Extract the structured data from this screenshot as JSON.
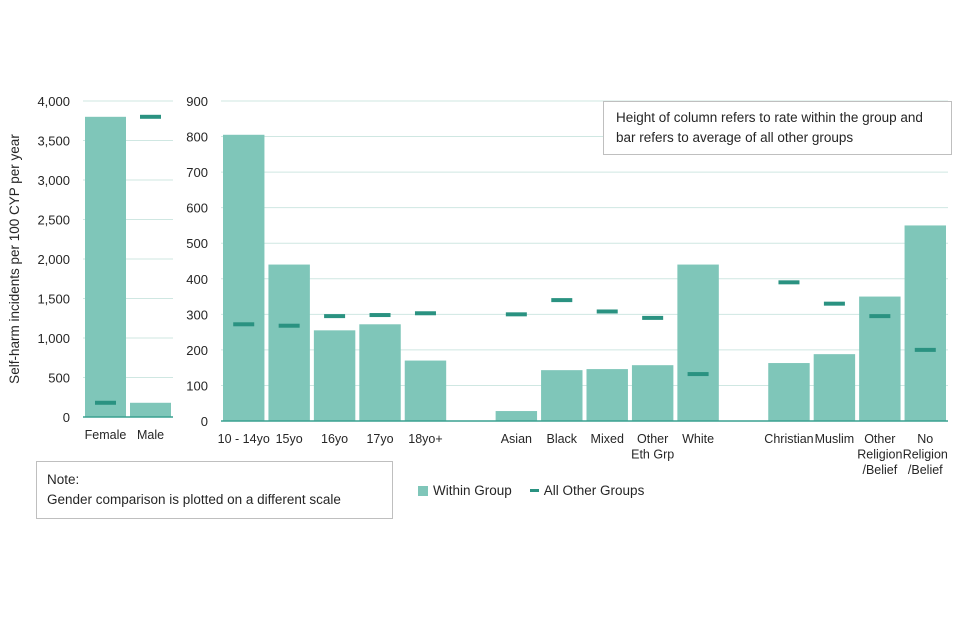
{
  "chart_data": {
    "type": "bar",
    "ylabel": "Self-harm incidents per 100 CYP per year",
    "colors": {
      "within_group": "#7fc6b9",
      "all_other_groups": "#2a9281",
      "axis": "#3aa090",
      "grid": "#cfe7e2"
    },
    "legend": {
      "position": "bottom",
      "entries": [
        {
          "name": "Within Group",
          "marker": "square"
        },
        {
          "name": "All Other Groups",
          "marker": "dash"
        }
      ]
    },
    "annotation": "Height of column refers to rate within the group and bar refers to average of all other groups",
    "note": {
      "title": "Note:",
      "text": "Gender comparison is plotted on a different scale"
    },
    "panels": [
      {
        "name": "gender",
        "ylim": [
          0,
          4000
        ],
        "yticks": [
          0,
          500,
          1000,
          1500,
          2000,
          2500,
          3000,
          3500,
          4000
        ],
        "ytick_labels": [
          "0",
          "500",
          "1,000",
          "1,500",
          "2,000",
          "2,500",
          "3,000",
          "3,500",
          "4,000"
        ],
        "categories": [
          {
            "label": [
              "Female"
            ],
            "within_group": 3800,
            "all_other_groups": 180
          },
          {
            "label": [
              "Male"
            ],
            "within_group": 180,
            "all_other_groups": 3800
          }
        ]
      },
      {
        "name": "groups",
        "ylim": [
          0,
          900
        ],
        "yticks": [
          0,
          100,
          200,
          300,
          400,
          500,
          600,
          700,
          800,
          900
        ],
        "ytick_labels": [
          "0",
          "100",
          "200",
          "300",
          "400",
          "500",
          "600",
          "700",
          "800",
          "900"
        ],
        "categories": [
          {
            "label": [
              "10 - 14yo"
            ],
            "within_group": 805,
            "all_other_groups": 272
          },
          {
            "label": [
              "15yo"
            ],
            "within_group": 440,
            "all_other_groups": 268
          },
          {
            "label": [
              "16yo"
            ],
            "within_group": 255,
            "all_other_groups": 295
          },
          {
            "label": [
              "17yo"
            ],
            "within_group": 272,
            "all_other_groups": 298
          },
          {
            "label": [
              "18yo+"
            ],
            "within_group": 170,
            "all_other_groups": 303
          },
          {
            "label": [
              ""
            ],
            "within_group": null,
            "all_other_groups": null
          },
          {
            "label": [
              "Asian"
            ],
            "within_group": 28,
            "all_other_groups": 300
          },
          {
            "label": [
              "Black"
            ],
            "within_group": 143,
            "all_other_groups": 340
          },
          {
            "label": [
              "Mixed"
            ],
            "within_group": 146,
            "all_other_groups": 308
          },
          {
            "label": [
              "Other",
              "Eth Grp"
            ],
            "within_group": 157,
            "all_other_groups": 290
          },
          {
            "label": [
              "White"
            ],
            "within_group": 440,
            "all_other_groups": 132
          },
          {
            "label": [
              ""
            ],
            "within_group": null,
            "all_other_groups": null
          },
          {
            "label": [
              "Christian"
            ],
            "within_group": 163,
            "all_other_groups": 390
          },
          {
            "label": [
              "Muslim"
            ],
            "within_group": 188,
            "all_other_groups": 330
          },
          {
            "label": [
              "Other",
              "Religion",
              "/Belief"
            ],
            "within_group": 350,
            "all_other_groups": 295
          },
          {
            "label": [
              "No",
              "Religion",
              "/Belief"
            ],
            "within_group": 550,
            "all_other_groups": 200
          }
        ]
      }
    ]
  }
}
